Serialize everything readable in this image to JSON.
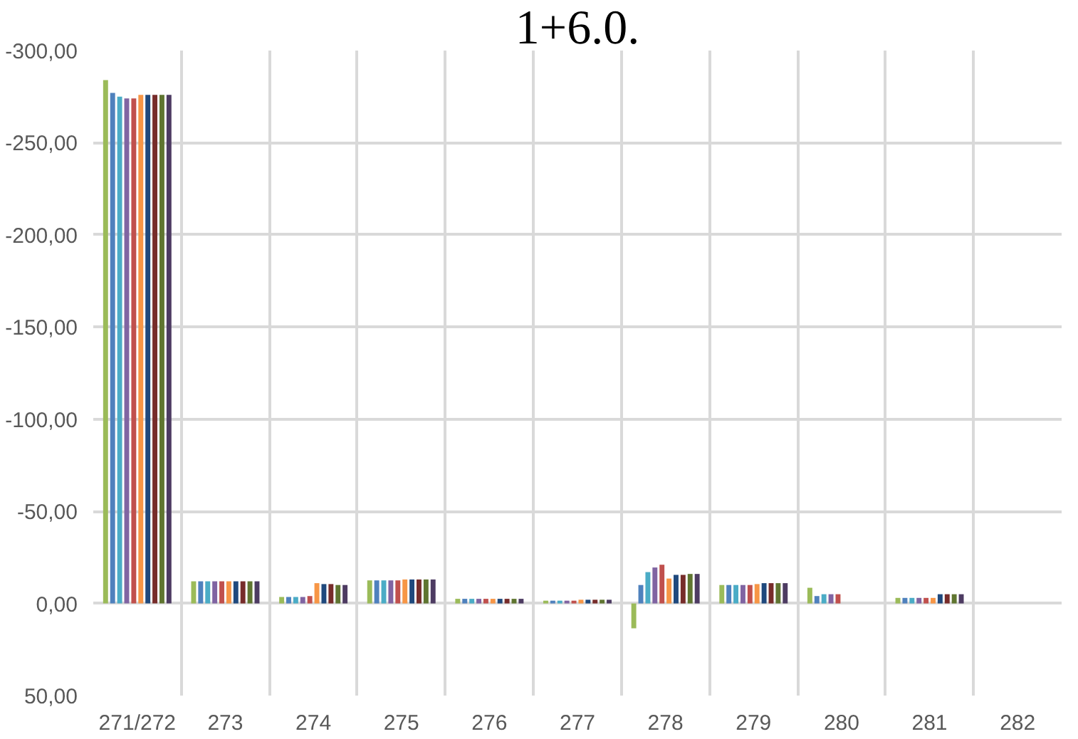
{
  "chart_data": {
    "type": "bar",
    "title": "1+6.0.",
    "categories": [
      "271/272",
      "273",
      "274",
      "275",
      "276",
      "277",
      "278",
      "279",
      "280",
      "281",
      "282"
    ],
    "series": [
      {
        "color": "#9bbb59",
        "values": [
          -284,
          -12,
          -3.5,
          -12.5,
          -2.5,
          -1.5,
          13.5,
          -10,
          -8.5,
          -3,
          null
        ]
      },
      {
        "color": "#4f81bd",
        "values": [
          -277,
          -12,
          -3.5,
          -12.5,
          -2.5,
          -1.5,
          -10,
          -10,
          -4,
          -3,
          null
        ]
      },
      {
        "color": "#4bacc6",
        "values": [
          -275,
          -12,
          -3.5,
          -12.5,
          -2.5,
          -1.5,
          -17,
          -10,
          -5,
          -3,
          null
        ]
      },
      {
        "color": "#8064a2",
        "values": [
          -274,
          -12,
          -3.5,
          -12.5,
          -2.5,
          -1.5,
          -19.5,
          -10,
          -5,
          -3,
          null
        ]
      },
      {
        "color": "#c0504d",
        "values": [
          -274,
          -12,
          -4,
          -12.5,
          -2.5,
          -1.5,
          -21,
          -10,
          -5,
          -3,
          null
        ]
      },
      {
        "color": "#f79646",
        "values": [
          -276,
          -12,
          -11,
          -13,
          -2.5,
          -2,
          -13.5,
          -10.5,
          null,
          -3,
          null
        ]
      },
      {
        "color": "#1f497d",
        "values": [
          -276,
          -12,
          -10.5,
          -13,
          -2.5,
          -2,
          -15.5,
          -11,
          null,
          -5,
          null
        ]
      },
      {
        "color": "#772c2a",
        "values": [
          -276,
          -12,
          -10.5,
          -13,
          -2.5,
          -2,
          -15.5,
          -11,
          null,
          -5,
          null
        ]
      },
      {
        "color": "#5f7530",
        "values": [
          -276,
          -12,
          -10,
          -13,
          -2.5,
          -2,
          -16,
          -11,
          null,
          -5,
          null
        ]
      },
      {
        "color": "#4d3b62",
        "values": [
          -276,
          -12,
          -10,
          -13,
          -2.5,
          -2,
          -16,
          -11,
          null,
          -5,
          null
        ]
      }
    ],
    "ylim": [
      50,
      -300
    ],
    "yticks": [
      {
        "value": -300,
        "label": "-300,00"
      },
      {
        "value": -250,
        "label": "-250,00"
      },
      {
        "value": -200,
        "label": "-200,00"
      },
      {
        "value": -150,
        "label": "-150,00"
      },
      {
        "value": -100,
        "label": "-100,00"
      },
      {
        "value": -50,
        "label": "-50,00"
      },
      {
        "value": 0,
        "label": "0,00"
      },
      {
        "value": 50,
        "label": "50,00"
      }
    ],
    "grid": true
  }
}
